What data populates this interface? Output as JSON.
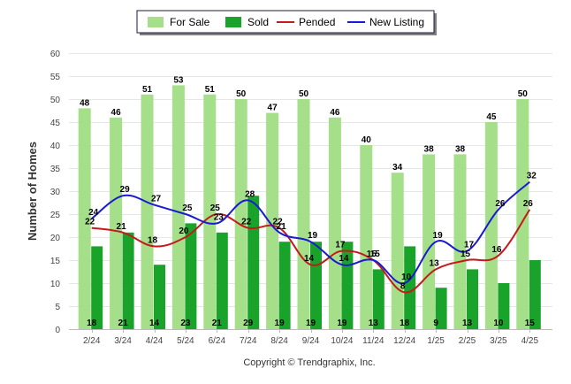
{
  "chart_data": {
    "type": "bar",
    "categories": [
      "2/24",
      "3/24",
      "4/24",
      "5/24",
      "6/24",
      "7/24",
      "8/24",
      "9/24",
      "10/24",
      "11/24",
      "12/24",
      "1/25",
      "2/25",
      "3/25",
      "4/25"
    ],
    "ylabel": "Number of Homes",
    "ylim": [
      0,
      60
    ],
    "yticks": [
      0,
      5,
      10,
      15,
      20,
      25,
      30,
      35,
      40,
      45,
      50,
      55,
      60
    ],
    "grid": true,
    "legend_position": "top-center",
    "footer": "Copyright © Trendgraphix, Inc.",
    "series": [
      {
        "name": "For Sale",
        "kind": "bar",
        "color": "#a6df8a",
        "values": [
          48,
          46,
          51,
          53,
          51,
          50,
          47,
          50,
          46,
          40,
          34,
          38,
          38,
          45,
          50
        ]
      },
      {
        "name": "Sold",
        "kind": "bar",
        "color": "#1aa32a",
        "values": [
          18,
          21,
          14,
          23,
          21,
          29,
          19,
          19,
          19,
          13,
          18,
          9,
          13,
          10,
          15
        ]
      },
      {
        "name": "Pended",
        "kind": "line",
        "color": "#c41a1a",
        "values": [
          22,
          21,
          18,
          20,
          25,
          22,
          22,
          14,
          17,
          15,
          8,
          13,
          15,
          16,
          26
        ]
      },
      {
        "name": "New Listing",
        "kind": "line",
        "color": "#1a1ad4",
        "values": [
          24,
          29,
          27,
          25,
          23,
          28,
          21,
          19,
          14,
          15,
          10,
          19,
          17,
          26,
          32
        ]
      }
    ]
  }
}
